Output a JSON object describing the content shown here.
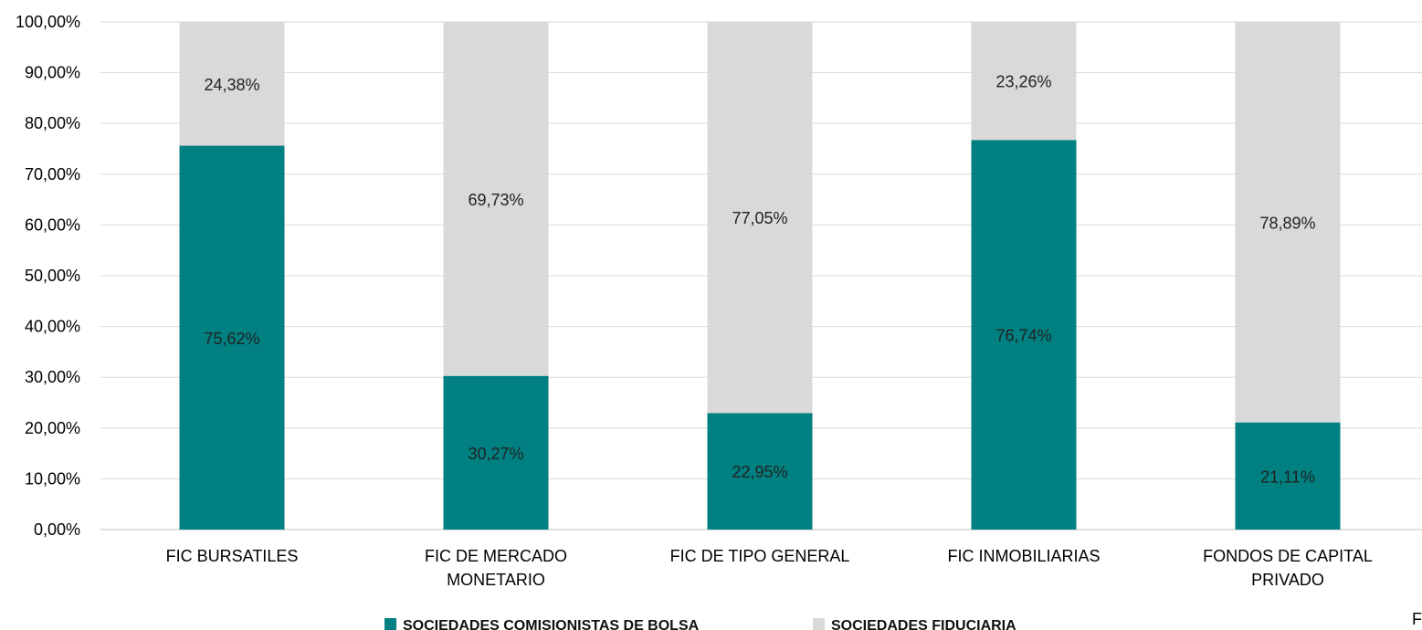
{
  "chart_data": {
    "type": "bar",
    "stacked": true,
    "categories": [
      [
        "FIC BURSATILES"
      ],
      [
        "FIC DE MERCADO",
        "MONETARIO"
      ],
      [
        "FIC DE TIPO GENERAL"
      ],
      [
        "FIC INMOBILIARIAS"
      ],
      [
        "FONDOS DE CAPITAL",
        "PRIVADO"
      ]
    ],
    "series": [
      {
        "name": "SOCIEDADES COMISIONISTAS DE BOLSA",
        "color": "#008080",
        "values": [
          75.62,
          30.27,
          22.95,
          76.74,
          21.11
        ],
        "labels": [
          "75,62%",
          "30,27%",
          "22,95%",
          "76,74%",
          "21,11%"
        ]
      },
      {
        "name": "SOCIEDADES FIDUCIARIA",
        "color": "#d9d9d9",
        "values": [
          24.38,
          69.73,
          77.05,
          23.26,
          78.89
        ],
        "labels": [
          "24,38%",
          "69,73%",
          "77,05%",
          "23,26%",
          "78,89%"
        ]
      }
    ],
    "yticks": [
      "0,00%",
      "10,00%",
      "20,00%",
      "30,00%",
      "40,00%",
      "50,00%",
      "60,00%",
      "70,00%",
      "80,00%",
      "90,00%",
      "100,00%"
    ],
    "ylim": [
      0,
      100
    ],
    "grid": true,
    "legend_position": "bottom"
  },
  "corner_text": "F"
}
